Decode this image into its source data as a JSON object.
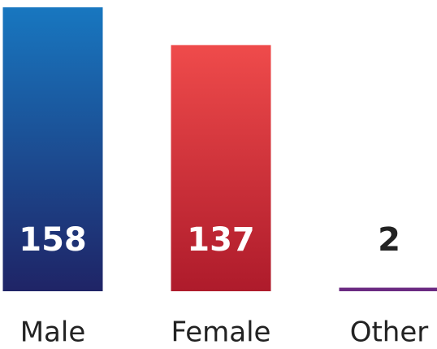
{
  "chart_data": {
    "type": "bar",
    "categories": [
      "Male",
      "Female",
      "Other"
    ],
    "values": [
      158,
      137,
      2
    ],
    "colors": [
      [
        "#1877c0",
        "#1f2466"
      ],
      [
        "#ef4b4b",
        "#ae1b2b"
      ],
      [
        "#6b2a82",
        "#6b2a82"
      ]
    ]
  }
}
